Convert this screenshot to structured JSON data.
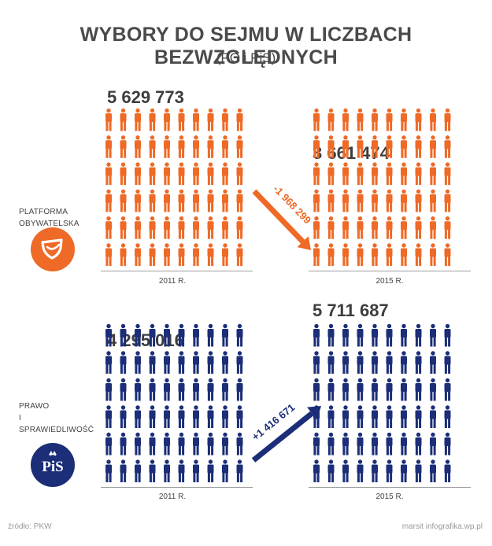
{
  "title": "WYBORY DO SEJMU W LICZBACH BEZWZGLĘDNYCH",
  "subtitle": "(PO i PiS)",
  "parties": {
    "po": {
      "line1": "PLATFORMA",
      "line2": "OBYWATELSKA"
    },
    "pis": {
      "line1": "PRAWO",
      "line2": "I",
      "line3": "SPRAWIEDLIWOŚĆ",
      "logo_text": "PiS"
    }
  },
  "colors": {
    "po": "#ee6a26",
    "pis": "#1c2e78"
  },
  "icons": [
    "person-icon",
    "po-logo-icon",
    "pis-logo-icon",
    "arrow-down-icon",
    "arrow-up-icon"
  ],
  "chart_data": {
    "type": "pictogram",
    "categories": [
      "2011 R.",
      "2015 R."
    ],
    "series": [
      {
        "name": "PLATFORMA OBYWATELSKA",
        "values": [
          5629773,
          3661474
        ],
        "labels": [
          "5 629 773",
          "3 661 474"
        ],
        "change_label": "-1 968 299"
      },
      {
        "name": "PRAWO I SPRAWIEDLIWOŚĆ",
        "values": [
          4295016,
          5711687
        ],
        "labels": [
          "4 295 016",
          "5 711 687"
        ],
        "change_label": "+1 416 671"
      }
    ]
  },
  "footer": {
    "source": "źródło: PKW",
    "credit": "marsit infografika.wp.pl"
  }
}
